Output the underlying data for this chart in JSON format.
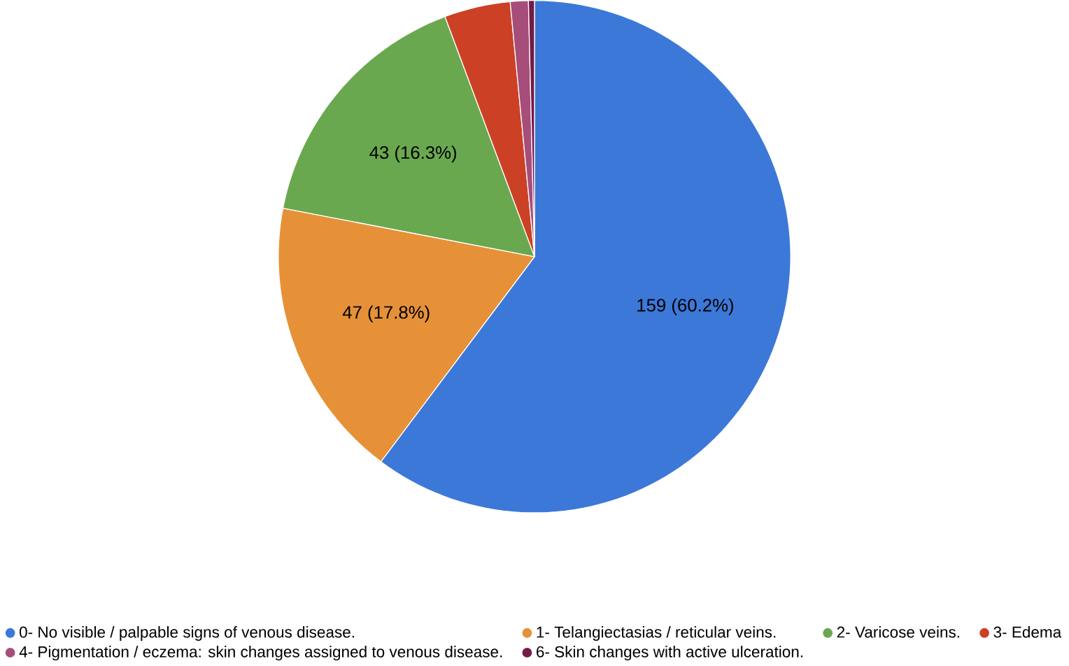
{
  "chart_data": {
    "type": "pie",
    "categories": [
      "0- No visible / palpable signs of venous disease.",
      "1- Telangiectasias / reticular veins.",
      "2- Varicose veins.",
      "3- Edema",
      "4- Pigmentation / eczema: skin changes assigned to venous disease.",
      "6- Skin changes with active ulceration."
    ],
    "values": [
      159,
      47,
      43,
      11,
      3,
      1
    ],
    "colors": [
      "#3c78d8",
      "#e69138",
      "#6aa84f",
      "#cc4125",
      "#a64d79",
      "#741b47"
    ],
    "value_labels": [
      "159 (60.2%)",
      "47 (17.8%)",
      "43 (16.3%)",
      null,
      null,
      null
    ],
    "legend": "bottom"
  }
}
